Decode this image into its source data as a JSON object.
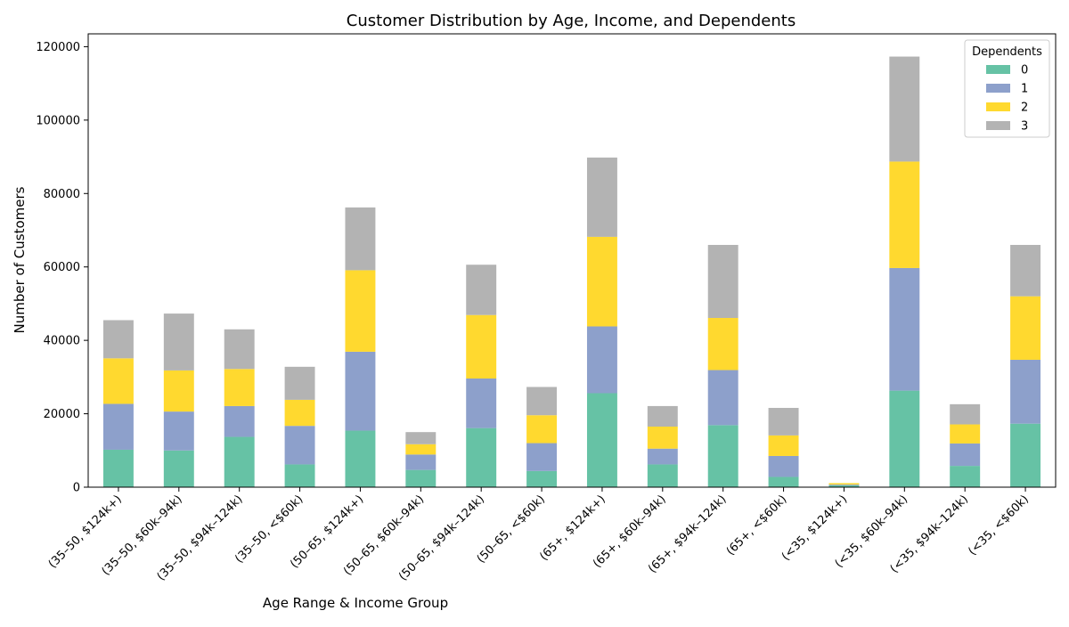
{
  "chart_data": {
    "type": "bar",
    "stacked": true,
    "title": "Customer Distribution by Age, Income, and Dependents",
    "xlabel": "Age Range & Income Group",
    "ylabel": "Number of Customers",
    "ylim": [
      0,
      123500
    ],
    "yticks": [
      0,
      20000,
      40000,
      60000,
      80000,
      100000,
      120000
    ],
    "ytick_labels": [
      "0",
      "20000",
      "40000",
      "60000",
      "80000",
      "100000",
      "120000"
    ],
    "categories": [
      "(35–50, $124k+)",
      "(35–50, $60k–94k)",
      "(35–50, $94k–124k)",
      "(35–50, <$60k)",
      "(50–65, $124k+)",
      "(50–65, $60k–94k)",
      "(50–65, $94k–124k)",
      "(50–65, <$60k)",
      "(65+, $124k+)",
      "(65+, $60k–94k)",
      "(65+, $94k–124k)",
      "(65+, <$60k)",
      "(<35, $124k+)",
      "(<35, $60k–94k)",
      "(<35, $94k–124k)",
      "(<35, <$60k)"
    ],
    "legend_title": "Dependents",
    "legend_position": "top-right",
    "grid": false,
    "series": [
      {
        "name": "0",
        "color": "#66c2a5",
        "values": [
          10200,
          10000,
          13700,
          6200,
          15400,
          4700,
          16100,
          4400,
          25600,
          6200,
          16900,
          2800,
          500,
          26300,
          5800,
          17300
        ]
      },
      {
        "name": "1",
        "color": "#8da0cb",
        "values": [
          12500,
          10600,
          8400,
          10500,
          21500,
          4200,
          13500,
          7600,
          18200,
          4300,
          15000,
          5700,
          200,
          33400,
          6100,
          17400
        ]
      },
      {
        "name": "2",
        "color": "#ffd92f",
        "values": [
          12400,
          11200,
          10100,
          7100,
          22200,
          2800,
          17300,
          7600,
          24400,
          6000,
          14200,
          5600,
          400,
          29000,
          5200,
          17300
        ]
      },
      {
        "name": "3",
        "color": "#b3b3b3",
        "values": [
          10400,
          15500,
          10800,
          9000,
          17100,
          3300,
          13700,
          7700,
          21600,
          5600,
          19900,
          7500,
          0,
          28600,
          5500,
          14000
        ]
      }
    ]
  }
}
